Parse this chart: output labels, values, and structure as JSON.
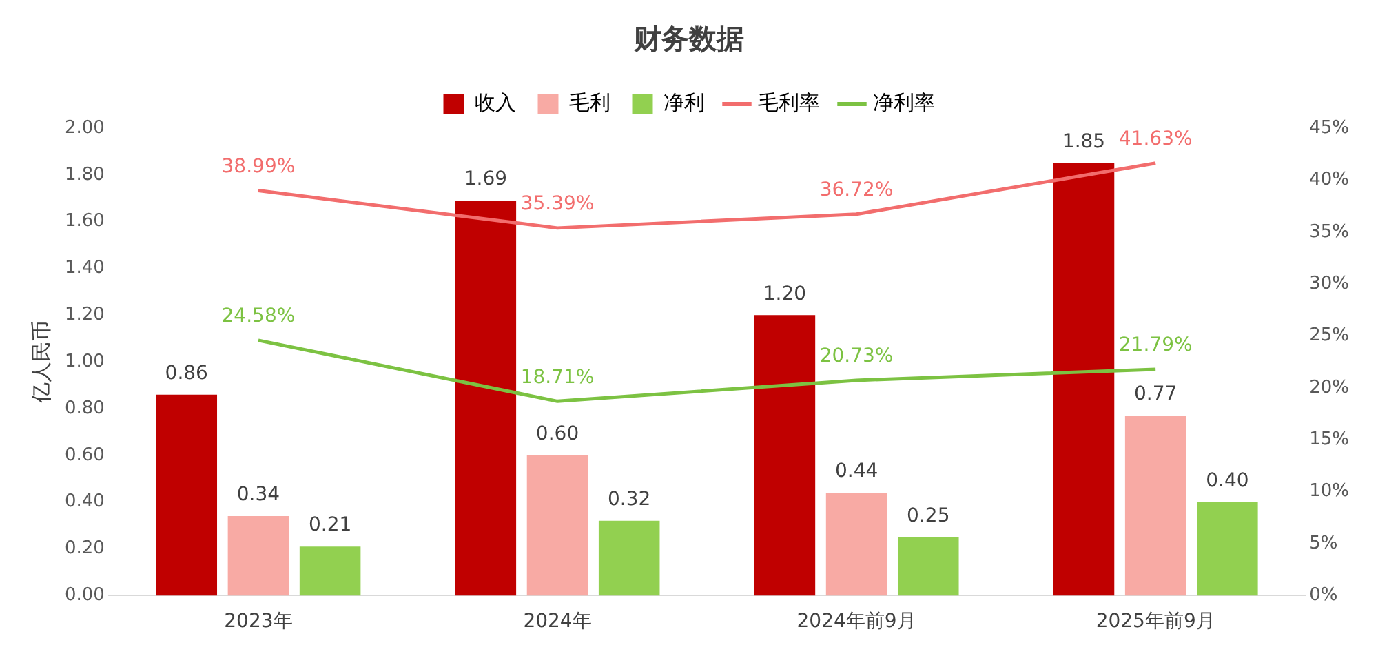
{
  "chart_data": {
    "type": "bar",
    "title": "财务数据",
    "ylabel": "亿人民币",
    "legend": "top",
    "marker": "none",
    "categories": [
      "2023年",
      "2024年",
      "2024年前9月",
      "2025年前9月"
    ],
    "series": [
      {
        "name": "收入",
        "color": "#c00000",
        "values": [
          0.86,
          1.69,
          1.2,
          1.85
        ],
        "value_labels": [
          "0.86",
          "1.69",
          "1.20",
          "1.85"
        ]
      },
      {
        "name": "毛利",
        "color": "#f8aaa4",
        "values": [
          0.34,
          0.6,
          0.44,
          0.77
        ],
        "value_labels": [
          "0.34",
          "0.60",
          "0.44",
          "0.77"
        ]
      },
      {
        "name": "净利",
        "color": "#92d050",
        "values": [
          0.21,
          0.32,
          0.25,
          0.4
        ],
        "value_labels": [
          "0.21",
          "0.32",
          "0.25",
          "0.40"
        ]
      },
      {
        "name": "毛利率",
        "type": "line",
        "axis": "y2",
        "color": "#f26d6d",
        "values": [
          38.99,
          35.39,
          36.72,
          41.63
        ],
        "value_labels": [
          "38.99%",
          "35.39%",
          "36.72%",
          "41.63%"
        ]
      },
      {
        "name": "净利率",
        "type": "line",
        "axis": "y2",
        "color": "#7cc242",
        "values": [
          24.58,
          18.71,
          20.73,
          21.79
        ],
        "value_labels": [
          "24.58%",
          "18.71%",
          "20.73%",
          "21.79%"
        ]
      }
    ],
    "ylim": [
      0,
      2
    ],
    "yticks": [
      {
        "value": 0,
        "label": "0.00"
      },
      {
        "value": 0.2,
        "label": "0.20"
      },
      {
        "value": 0.4,
        "label": "0.40"
      },
      {
        "value": 0.6,
        "label": "0.60"
      },
      {
        "value": 0.8,
        "label": "0.80"
      },
      {
        "value": 1,
        "label": "1.00"
      },
      {
        "value": 1.2,
        "label": "1.20"
      },
      {
        "value": 1.4,
        "label": "1.40"
      },
      {
        "value": 1.6,
        "label": "1.60"
      },
      {
        "value": 1.8,
        "label": "1.80"
      },
      {
        "value": 2,
        "label": "2.00"
      }
    ],
    "y2lim": [
      0,
      45
    ],
    "y2ticks": [
      {
        "value": 0,
        "label": "0%"
      },
      {
        "value": 5,
        "label": "5%"
      },
      {
        "value": 10,
        "label": "10%"
      },
      {
        "value": 15,
        "label": "15%"
      },
      {
        "value": 20,
        "label": "20%"
      },
      {
        "value": 25,
        "label": "25%"
      },
      {
        "value": 30,
        "label": "30%"
      },
      {
        "value": 35,
        "label": "35%"
      },
      {
        "value": 40,
        "label": "40%"
      },
      {
        "value": 45,
        "label": "45%"
      }
    ]
  }
}
